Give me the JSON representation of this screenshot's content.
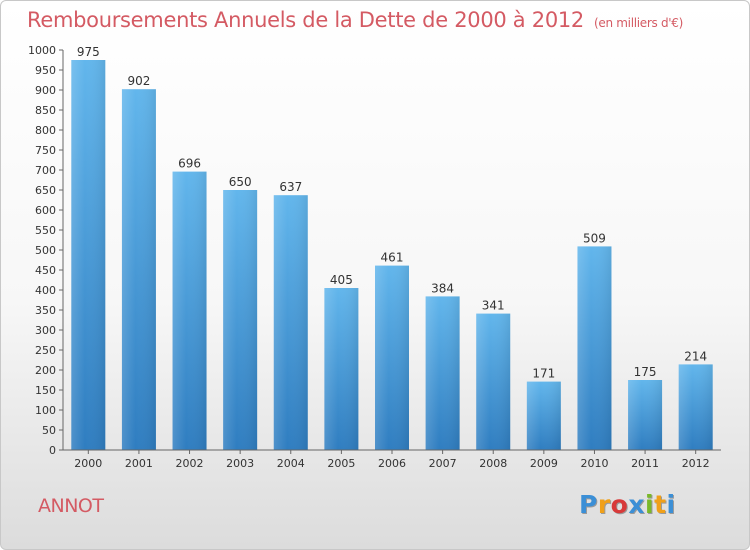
{
  "header": {
    "title": "Remboursements Annuels de la Dette de 2000 à 2012",
    "subtitle": "(en milliers d'€)"
  },
  "footer": {
    "commune": "ANNOT",
    "logo_letters": [
      "P",
      "r",
      "o",
      "x",
      "i",
      "t",
      "i"
    ],
    "logo_colors": [
      "#3b8fd6",
      "#f0a019",
      "#d83a3a",
      "#3b8fd6",
      "#7ab829",
      "#f0a019",
      "#3b8fd6"
    ]
  },
  "colors": {
    "bar_top": "#62b6ec",
    "bar_bottom": "#2f7dc0",
    "text": "#333333",
    "accent": "#d45a63"
  },
  "chart_data": {
    "type": "bar",
    "categories": [
      "2000",
      "2001",
      "2002",
      "2003",
      "2004",
      "2005",
      "2006",
      "2007",
      "2008",
      "2009",
      "2010",
      "2011",
      "2012"
    ],
    "values": [
      975,
      902,
      696,
      650,
      637,
      405,
      461,
      384,
      341,
      171,
      509,
      175,
      214
    ],
    "title": "Remboursements Annuels de la Dette de 2000 à 2012",
    "subtitle": "(en milliers d'€)",
    "ylim": [
      0,
      1000
    ],
    "ytick_step": 50,
    "grid": false,
    "legend": "none"
  }
}
